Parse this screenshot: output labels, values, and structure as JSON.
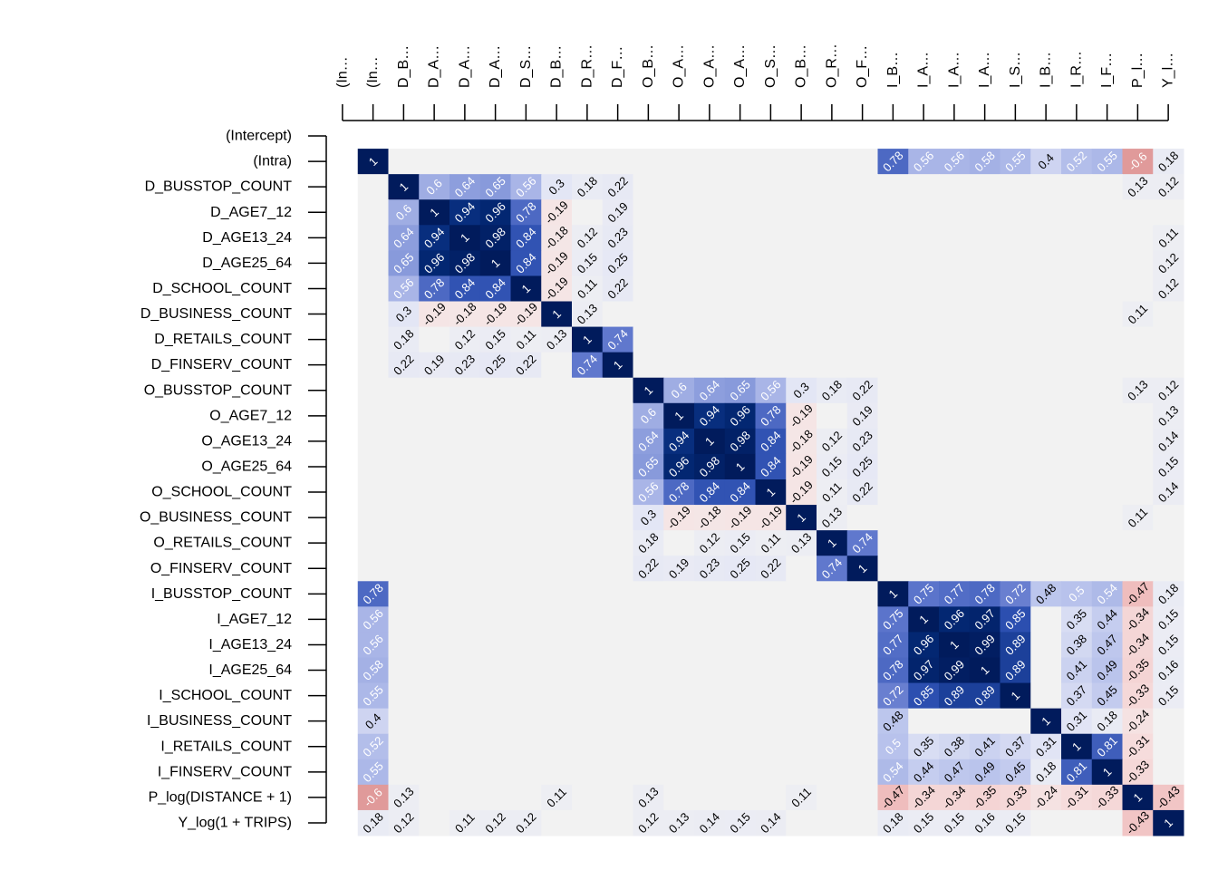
{
  "chart_data": {
    "type": "heatmap",
    "title": "",
    "variables": [
      "(Intercept)",
      "(Intra)",
      "D_BUSSTOP_COUNT",
      "D_AGE7_12",
      "D_AGE13_24",
      "D_AGE25_64",
      "D_SCHOOL_COUNT",
      "D_BUSINESS_COUNT",
      "D_RETAILS_COUNT",
      "D_FINSERV_COUNT",
      "O_BUSSTOP_COUNT",
      "O_AGE7_12",
      "O_AGE13_24",
      "O_AGE25_64",
      "O_SCHOOL_COUNT",
      "O_BUSINESS_COUNT",
      "O_RETAILS_COUNT",
      "O_FINSERV_COUNT",
      "I_BUSSTOP_COUNT",
      "I_AGE7_12",
      "I_AGE13_24",
      "I_AGE25_64",
      "I_SCHOOL_COUNT",
      "I_BUSINESS_COUNT",
      "I_RETAILS_COUNT",
      "I_FINSERV_COUNT",
      "P_log(DISTANCE + 1)",
      "Y_log(1 + TRIPS)"
    ],
    "column_labels": [
      "(In…",
      "(In…",
      "D_B…",
      "D_A…",
      "D_A…",
      "D_A…",
      "D_S…",
      "D_B…",
      "D_R…",
      "D_F…",
      "O_B…",
      "O_A…",
      "O_A…",
      "O_A…",
      "O_S…",
      "O_B…",
      "O_R…",
      "O_F…",
      "I_B…",
      "I_A…",
      "I_A…",
      "I_A…",
      "I_S…",
      "I_B…",
      "I_R…",
      "I_F…",
      "P_l…",
      "Y_l…"
    ],
    "value_range": [
      -1,
      1
    ],
    "not_available": [
      "(Intercept)"
    ],
    "diagonal": 1,
    "correlations": [
      [
        2,
        3,
        0.6
      ],
      [
        2,
        4,
        0.64
      ],
      [
        2,
        5,
        0.65
      ],
      [
        2,
        6,
        0.56
      ],
      [
        2,
        7,
        0.3
      ],
      [
        2,
        8,
        0.18
      ],
      [
        2,
        9,
        0.22
      ],
      [
        3,
        4,
        0.94
      ],
      [
        3,
        5,
        0.96
      ],
      [
        3,
        6,
        0.78
      ],
      [
        3,
        7,
        -0.19
      ],
      [
        3,
        9,
        0.19
      ],
      [
        4,
        5,
        0.98
      ],
      [
        4,
        6,
        0.84
      ],
      [
        4,
        7,
        -0.18
      ],
      [
        4,
        8,
        0.12
      ],
      [
        4,
        9,
        0.23
      ],
      [
        5,
        6,
        0.84
      ],
      [
        5,
        7,
        -0.19
      ],
      [
        5,
        8,
        0.15
      ],
      [
        5,
        9,
        0.25
      ],
      [
        6,
        7,
        -0.19
      ],
      [
        6,
        8,
        0.11
      ],
      [
        6,
        9,
        0.22
      ],
      [
        7,
        8,
        0.13
      ],
      [
        8,
        9,
        0.74
      ],
      [
        10,
        11,
        0.6
      ],
      [
        10,
        12,
        0.64
      ],
      [
        10,
        13,
        0.65
      ],
      [
        10,
        14,
        0.56
      ],
      [
        10,
        15,
        0.3
      ],
      [
        10,
        16,
        0.18
      ],
      [
        10,
        17,
        0.22
      ],
      [
        11,
        12,
        0.94
      ],
      [
        11,
        13,
        0.96
      ],
      [
        11,
        14,
        0.78
      ],
      [
        11,
        15,
        -0.19
      ],
      [
        11,
        17,
        0.19
      ],
      [
        12,
        13,
        0.98
      ],
      [
        12,
        14,
        0.84
      ],
      [
        12,
        15,
        -0.18
      ],
      [
        12,
        16,
        0.12
      ],
      [
        12,
        17,
        0.23
      ],
      [
        13,
        14,
        0.84
      ],
      [
        13,
        15,
        -0.19
      ],
      [
        13,
        16,
        0.15
      ],
      [
        13,
        17,
        0.25
      ],
      [
        14,
        15,
        -0.19
      ],
      [
        14,
        16,
        0.11
      ],
      [
        14,
        17,
        0.22
      ],
      [
        15,
        16,
        0.13
      ],
      [
        16,
        17,
        0.74
      ],
      [
        1,
        18,
        0.78
      ],
      [
        1,
        19,
        0.56
      ],
      [
        1,
        20,
        0.56
      ],
      [
        1,
        21,
        0.58
      ],
      [
        1,
        22,
        0.55
      ],
      [
        1,
        23,
        0.4
      ],
      [
        1,
        24,
        0.52
      ],
      [
        1,
        25,
        0.55
      ],
      [
        1,
        26,
        -0.6
      ],
      [
        1,
        27,
        0.18
      ],
      [
        2,
        26,
        0.13
      ],
      [
        7,
        26,
        0.11
      ],
      [
        10,
        26,
        0.13
      ],
      [
        15,
        26,
        0.11
      ],
      [
        2,
        27,
        0.12
      ],
      [
        4,
        27,
        0.11
      ],
      [
        5,
        27,
        0.12
      ],
      [
        6,
        27,
        0.12
      ],
      [
        10,
        27,
        0.12
      ],
      [
        11,
        27,
        0.13
      ],
      [
        12,
        27,
        0.14
      ],
      [
        13,
        27,
        0.15
      ],
      [
        14,
        27,
        0.14
      ],
      [
        18,
        19,
        0.75
      ],
      [
        18,
        20,
        0.77
      ],
      [
        18,
        21,
        0.78
      ],
      [
        18,
        22,
        0.72
      ],
      [
        18,
        23,
        0.48
      ],
      [
        18,
        24,
        0.5
      ],
      [
        18,
        25,
        0.54
      ],
      [
        18,
        26,
        -0.47
      ],
      [
        18,
        27,
        0.18
      ],
      [
        19,
        20,
        0.96
      ],
      [
        19,
        21,
        0.97
      ],
      [
        19,
        22,
        0.85
      ],
      [
        19,
        24,
        0.35
      ],
      [
        19,
        25,
        0.44
      ],
      [
        19,
        26,
        -0.34
      ],
      [
        19,
        27,
        0.15
      ],
      [
        20,
        21,
        0.99
      ],
      [
        20,
        22,
        0.89
      ],
      [
        20,
        24,
        0.38
      ],
      [
        20,
        25,
        0.47
      ],
      [
        20,
        26,
        -0.34
      ],
      [
        20,
        27,
        0.15
      ],
      [
        21,
        22,
        0.89
      ],
      [
        21,
        24,
        0.41
      ],
      [
        21,
        25,
        0.49
      ],
      [
        21,
        26,
        -0.35
      ],
      [
        21,
        27,
        0.16
      ],
      [
        22,
        24,
        0.37
      ],
      [
        22,
        25,
        0.45
      ],
      [
        22,
        26,
        -0.33
      ],
      [
        22,
        27,
        0.15
      ],
      [
        23,
        24,
        0.31
      ],
      [
        23,
        25,
        0.18
      ],
      [
        23,
        26,
        -0.24
      ],
      [
        24,
        25,
        0.81
      ],
      [
        24,
        26,
        -0.31
      ],
      [
        25,
        26,
        -0.33
      ],
      [
        26,
        27,
        -0.43
      ]
    ],
    "colors": {
      "positive": "#011b5c",
      "zero": "#f2f2f2",
      "negative": "#e09a9a",
      "na": "#ffffff"
    },
    "grid": false,
    "legend": "none"
  }
}
